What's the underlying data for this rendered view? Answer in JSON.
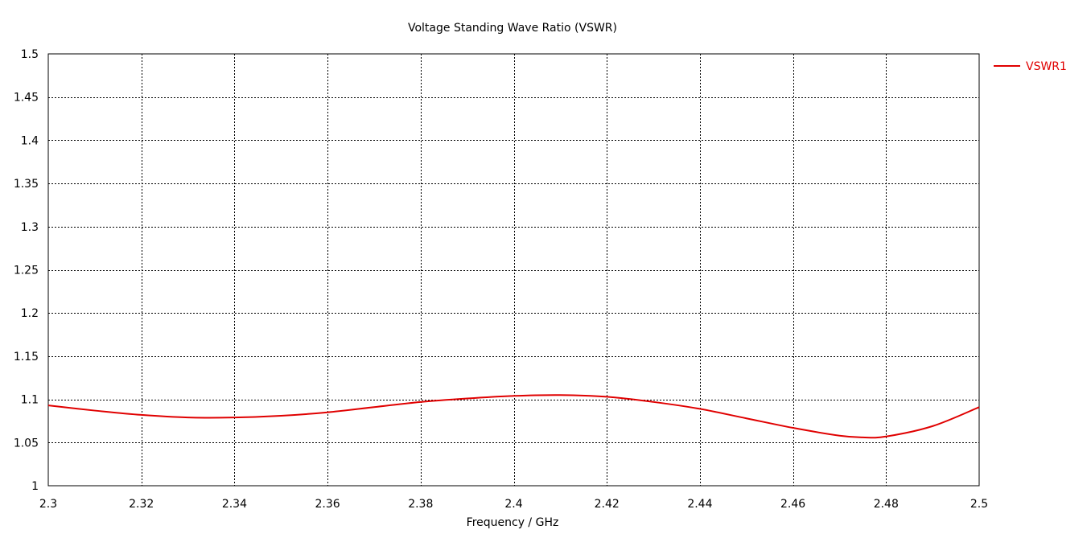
{
  "chart_data": {
    "type": "line",
    "title": "Voltage Standing Wave Ratio (VSWR)",
    "xlabel": "Frequency / GHz",
    "ylabel": "",
    "xlim": [
      2.3,
      2.5
    ],
    "ylim": [
      1,
      1.5
    ],
    "x_ticks": [
      "2.3",
      "2.32",
      "2.34",
      "2.36",
      "2.38",
      "2.4",
      "2.42",
      "2.44",
      "2.46",
      "2.48",
      "2.5"
    ],
    "y_ticks": [
      "1",
      "1.05",
      "1.1",
      "1.15",
      "1.2",
      "1.25",
      "1.3",
      "1.35",
      "1.4",
      "1.45",
      "1.5"
    ],
    "grid": true,
    "grid_style": "dotted",
    "legend_position": "right",
    "series": [
      {
        "name": "VSWR1",
        "color": "#e00000",
        "x": [
          2.3,
          2.31,
          2.32,
          2.33,
          2.34,
          2.35,
          2.36,
          2.37,
          2.38,
          2.39,
          2.4,
          2.41,
          2.42,
          2.43,
          2.44,
          2.45,
          2.46,
          2.47,
          2.475,
          2.48,
          2.49,
          2.5
        ],
        "y": [
          1.093,
          1.087,
          1.082,
          1.079,
          1.079,
          1.081,
          1.085,
          1.091,
          1.097,
          1.101,
          1.104,
          1.105,
          1.103,
          1.097,
          1.089,
          1.078,
          1.067,
          1.058,
          1.056,
          1.057,
          1.069,
          1.091
        ]
      }
    ]
  }
}
